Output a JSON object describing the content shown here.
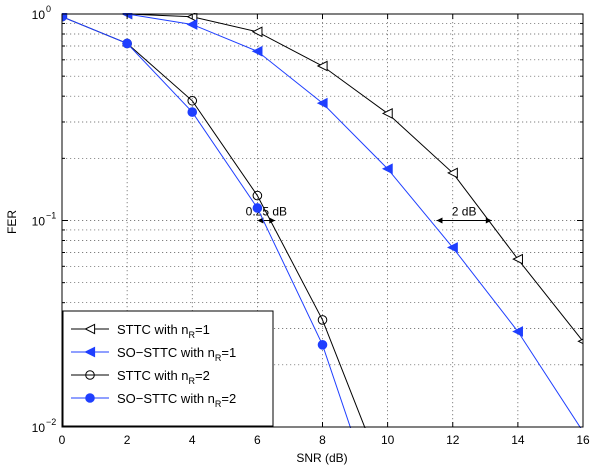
{
  "chart_data": {
    "type": "line",
    "xlabel": "SNR (dB)",
    "ylabel": "FER",
    "xlim": [
      0,
      16
    ],
    "ylim": [
      0.01,
      1
    ],
    "yscale": "log",
    "grid": true,
    "legend_position": "bottom-left",
    "x_ticks": [
      "0",
      "2",
      "4",
      "6",
      "8",
      "10",
      "12",
      "14",
      "16"
    ],
    "y_ticks": [
      {
        "base": "10",
        "exp": "0",
        "value": 1
      },
      {
        "base": "10",
        "exp": "−1",
        "value": 0.1
      },
      {
        "base": "10",
        "exp": "−2",
        "value": 0.01
      }
    ],
    "series": [
      {
        "legend_main": "STTC with n",
        "legend_sub": "R",
        "legend_tail": "=1",
        "color": "#000000",
        "marker": "triangle-left",
        "x": [
          0,
          2,
          4,
          6,
          8,
          10,
          12,
          14,
          16
        ],
        "y": [
          1.0,
          1.0,
          0.97,
          0.82,
          0.56,
          0.33,
          0.17,
          0.065,
          0.026
        ]
      },
      {
        "legend_main": "SO−STTC with n",
        "legend_sub": "R",
        "legend_tail": "=1",
        "color": "#1f3fff",
        "marker": "triangle-left-filled",
        "x": [
          0,
          2,
          4,
          6,
          8,
          10,
          12,
          14,
          16
        ],
        "y": [
          1.0,
          1.0,
          0.89,
          0.66,
          0.37,
          0.178,
          0.074,
          0.029,
          0.0095
        ]
      },
      {
        "legend_main": "STTC with n",
        "legend_sub": "R",
        "legend_tail": "=2",
        "color": "#000000",
        "marker": "circle",
        "x": [
          0,
          2,
          4,
          6,
          8,
          9.35
        ],
        "y": [
          0.97,
          0.72,
          0.38,
          0.132,
          0.033,
          0.0095
        ]
      },
      {
        "legend_main": "SO−STTC with n",
        "legend_sub": "R",
        "legend_tail": "=2",
        "color": "#1f3fff",
        "marker": "circle-filled",
        "x": [
          0,
          2,
          4,
          6,
          8,
          8.9
        ],
        "y": [
          0.97,
          0.72,
          0.335,
          0.115,
          0.025,
          0.0095
        ]
      }
    ],
    "annotations": [
      {
        "text": "0.25 dB",
        "x_from": 6.0,
        "x_to": 6.55,
        "y": 0.1
      },
      {
        "text": "2 dB",
        "x_from": 11.5,
        "x_to": 13.2,
        "y": 0.1
      }
    ]
  }
}
